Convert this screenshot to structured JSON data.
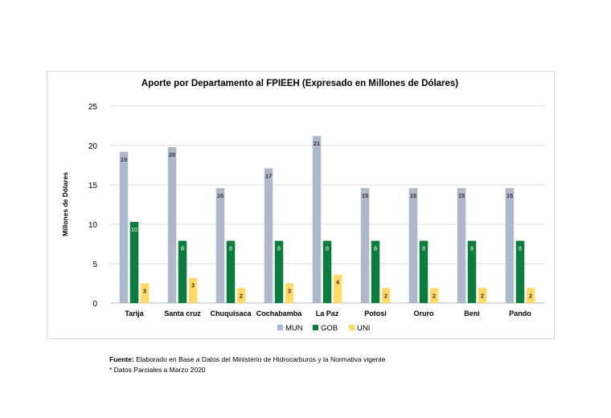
{
  "chart_data": {
    "type": "bar",
    "title": "Aporte por Departamento  al FPIEEH (Expresado en Millones de Dólares)",
    "ylabel": "Millones de Dólares",
    "xlabel": "",
    "ylim": [
      0,
      25
    ],
    "yticks": [
      0,
      5,
      10,
      15,
      20,
      25
    ],
    "grid": true,
    "legend_position": "bottom",
    "categories": [
      "Tarija",
      "Santa cruz",
      "Chuquisaca",
      "Cochabamba",
      "La Paz",
      "Potosi",
      "Oruro",
      "Beni",
      "Pando"
    ],
    "series": [
      {
        "name": "MUN",
        "color": "#adb9ca",
        "values": [
          19.2,
          19.8,
          14.6,
          17.1,
          21.2,
          14.6,
          14.6,
          14.6,
          14.6
        ],
        "labels": [
          "19",
          "20",
          "15",
          "17",
          "21",
          "15",
          "15",
          "15",
          "15"
        ]
      },
      {
        "name": "GOB",
        "color": "#0d7a3e",
        "values": [
          10.3,
          7.9,
          7.9,
          7.9,
          7.9,
          7.9,
          7.9,
          7.9,
          7.9
        ],
        "labels": [
          "10",
          "8",
          "8",
          "8",
          "8",
          "8",
          "8",
          "8",
          "8"
        ]
      },
      {
        "name": "UNI",
        "color": "#ffd966",
        "values": [
          2.5,
          3.2,
          1.9,
          2.5,
          3.6,
          1.9,
          1.9,
          1.9,
          1.9
        ],
        "labels": [
          "3",
          "3",
          "2",
          "3",
          "4",
          "2",
          "2",
          "2",
          "2"
        ]
      }
    ]
  },
  "footnotes": {
    "source_label": "Fuente:",
    "source_text": " Elaborado en Base a Datos del Ministerio de Hidrocarburos y la Normativa vigente",
    "note": "* Datos Parciales a Marzo 2020"
  }
}
